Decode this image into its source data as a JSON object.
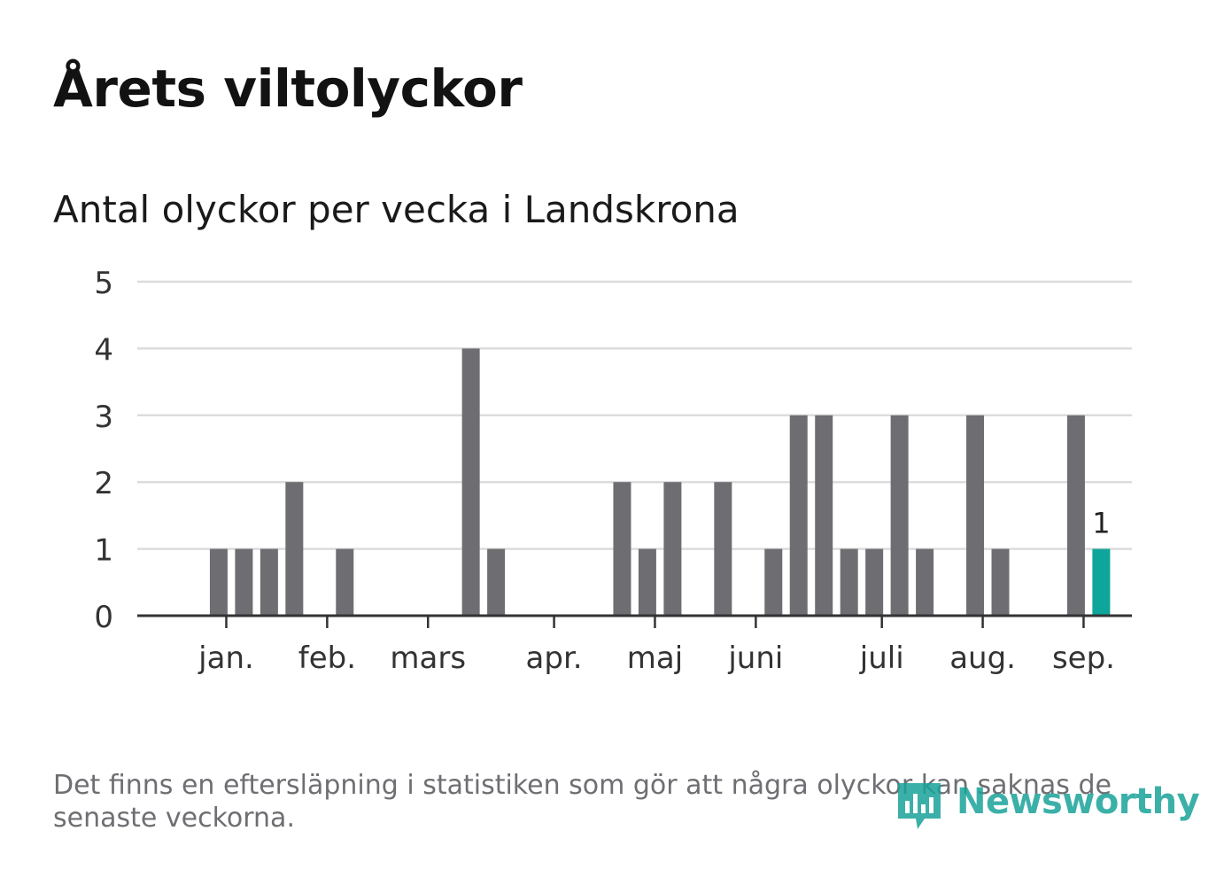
{
  "title": "Årets viltolyckor",
  "subtitle": "Antal olyckor per vecka i Landskrona",
  "footnote": "Det finns en eftersläpning i statistiken som gör att några olyckor kan saknas de senaste veckorna.",
  "logo": {
    "text": "Newsworthy",
    "icon": "newsworthy-logo-icon"
  },
  "colors": {
    "bar": "#6e6d72",
    "highlight": "#0ea59a",
    "grid": "#dcdcdc",
    "axis": "#333333",
    "text": "#333333"
  },
  "chart_data": {
    "type": "bar",
    "ylim": [
      0,
      5
    ],
    "yticks": [
      0,
      1,
      2,
      3,
      4,
      5
    ],
    "grid": true,
    "weeks": [
      1,
      2,
      3,
      4,
      5,
      6,
      7,
      8,
      9,
      10,
      11,
      12,
      13,
      14,
      15,
      16,
      17,
      18,
      19,
      20,
      21,
      22,
      23,
      24,
      25,
      26,
      27,
      28,
      29,
      30,
      31,
      32,
      33,
      34,
      35,
      36,
      37,
      38
    ],
    "values": [
      0,
      0,
      1,
      1,
      1,
      2,
      0,
      1,
      0,
      0,
      0,
      0,
      4,
      1,
      0,
      0,
      0,
      0,
      2,
      1,
      2,
      0,
      2,
      0,
      1,
      3,
      3,
      1,
      1,
      3,
      1,
      0,
      3,
      1,
      0,
      0,
      3,
      1
    ],
    "highlight_index": 37,
    "highlight_label": "1",
    "month_ticks": [
      {
        "label": "jan.",
        "week": 3.3
      },
      {
        "label": "feb.",
        "week": 7.3
      },
      {
        "label": "mars",
        "week": 11.3
      },
      {
        "label": "apr.",
        "week": 16.3
      },
      {
        "label": "maj",
        "week": 20.3
      },
      {
        "label": "juni",
        "week": 24.3
      },
      {
        "label": "juli",
        "week": 29.3
      },
      {
        "label": "aug.",
        "week": 33.3
      },
      {
        "label": "sep.",
        "week": 37.3
      }
    ]
  }
}
